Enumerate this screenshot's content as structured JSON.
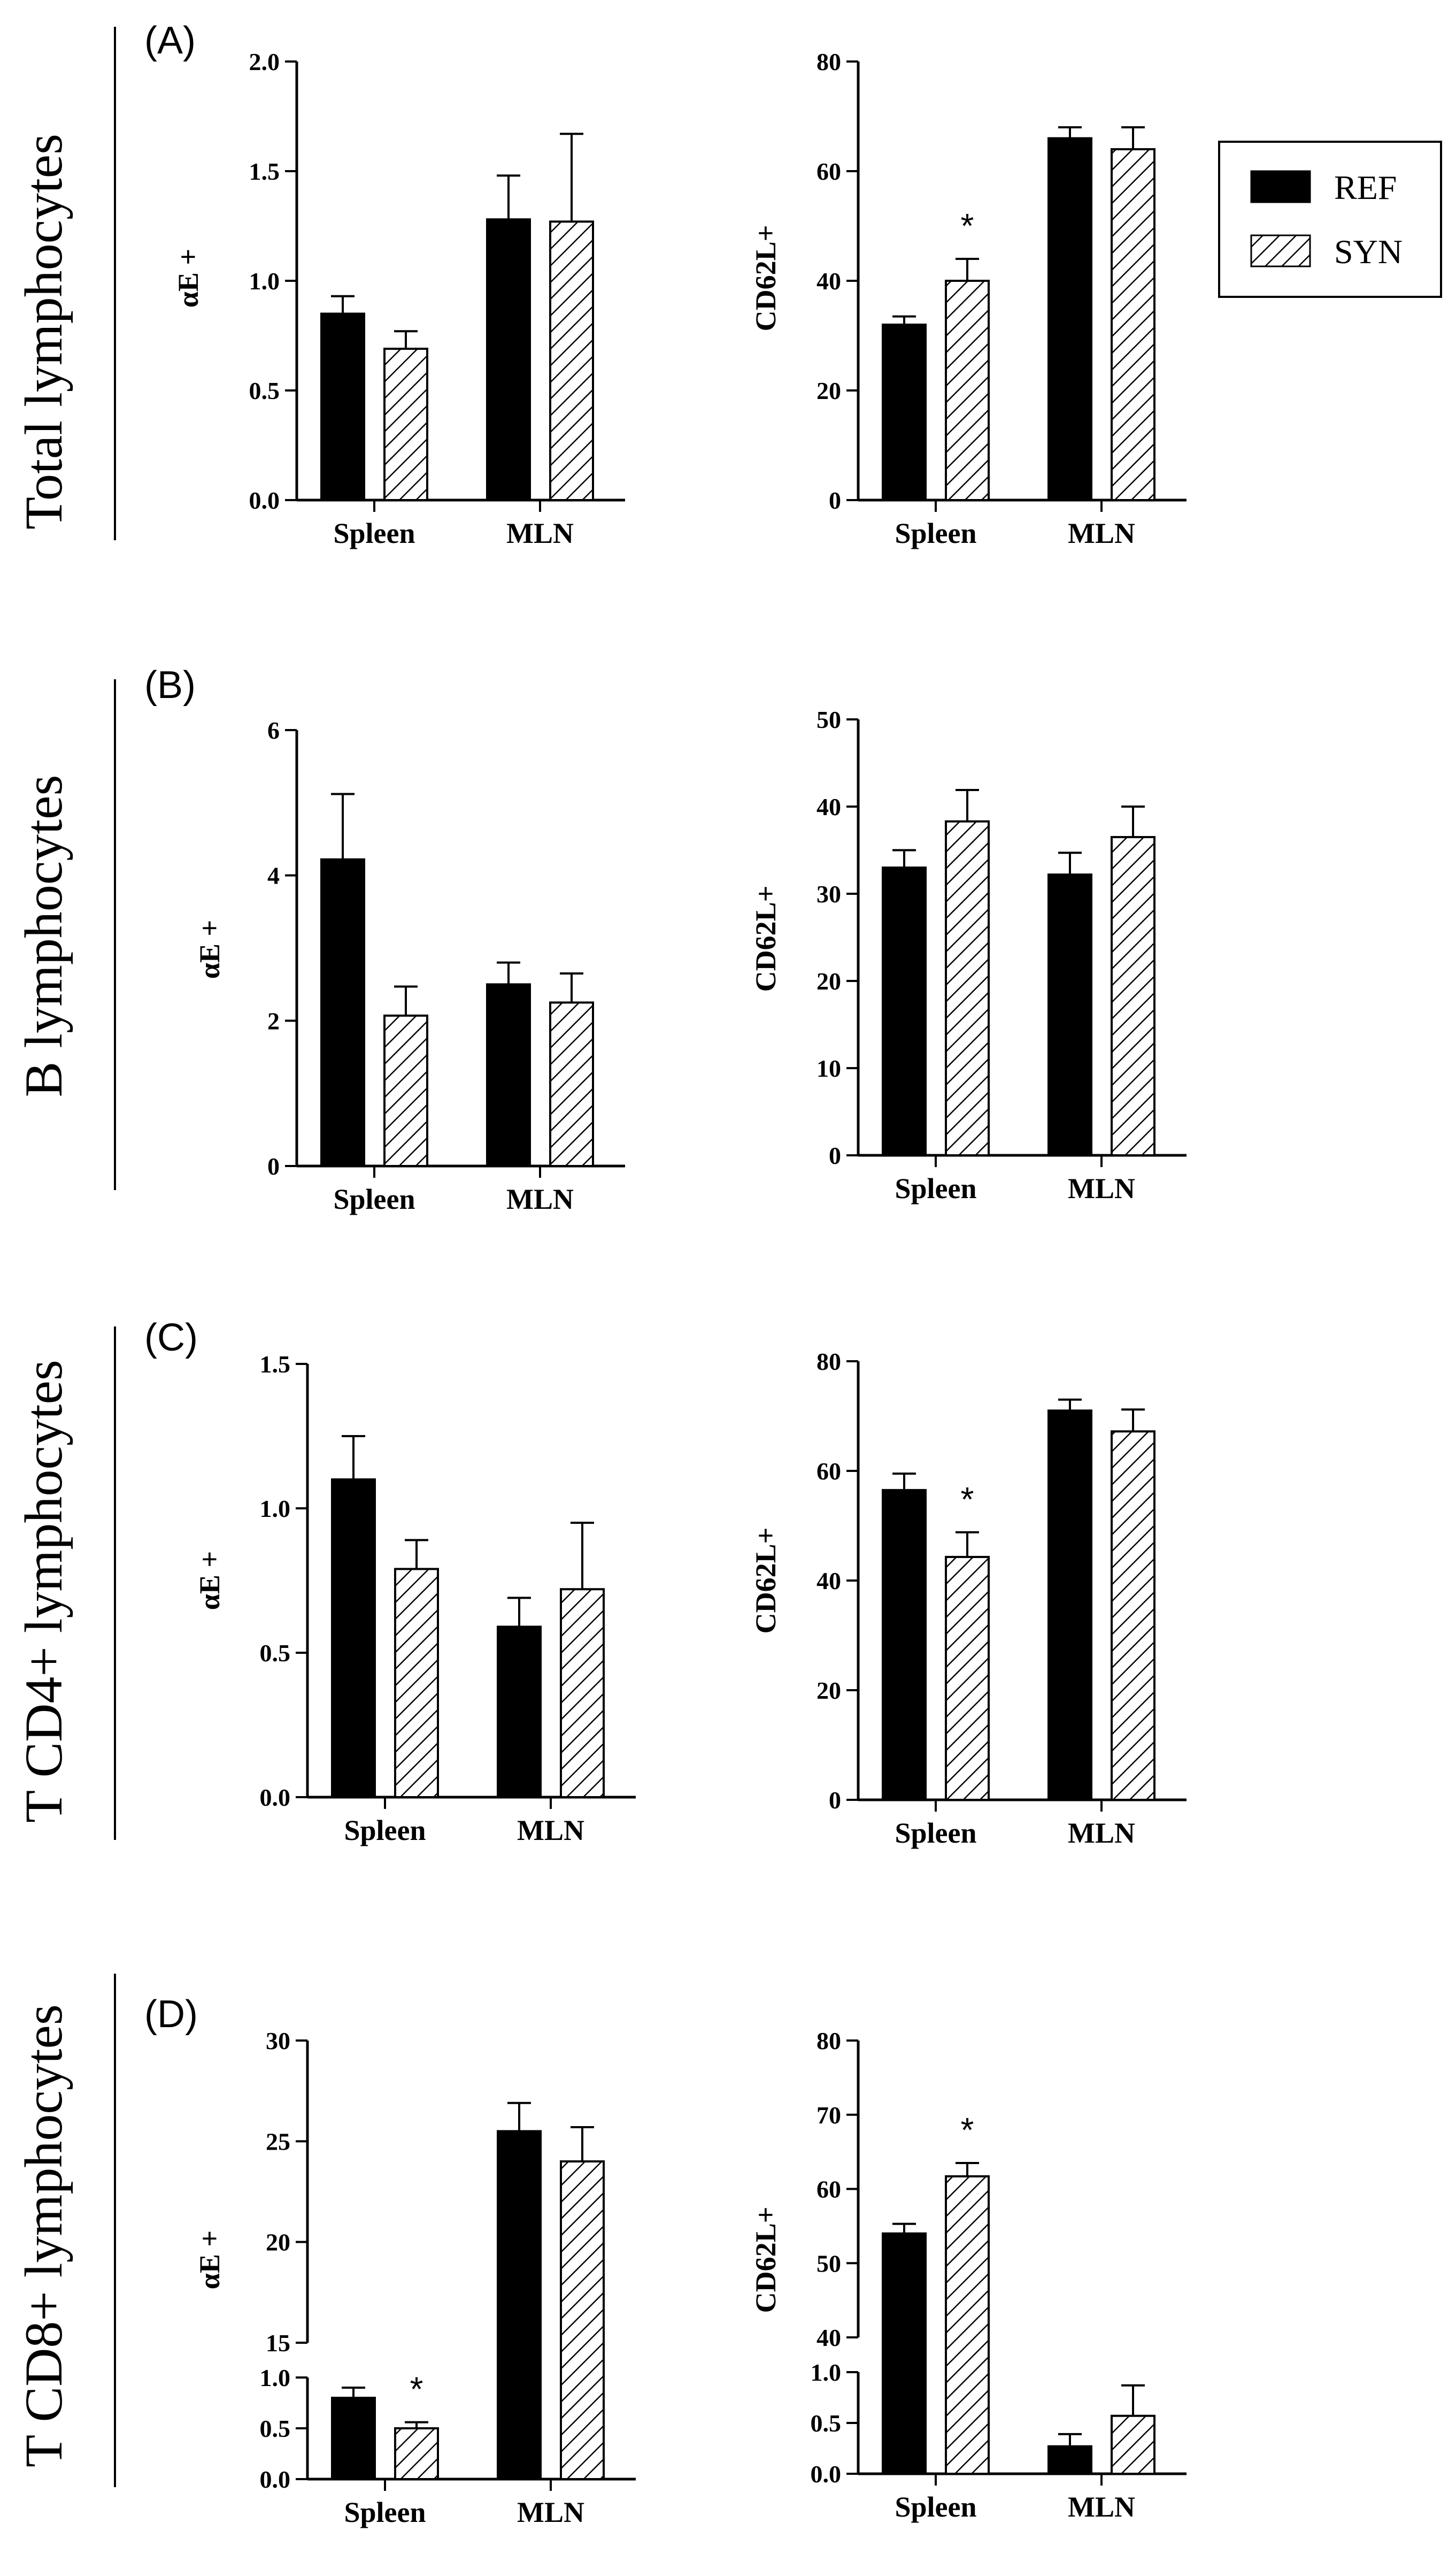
{
  "legend": {
    "items": [
      {
        "label": "REF",
        "fill": "#000000"
      },
      {
        "label": "SYN",
        "fill": "hatch"
      }
    ]
  },
  "rows": [
    {
      "panel": "(A)",
      "label": "Total lymphocytes"
    },
    {
      "panel": "(B)",
      "label": "B lymphocytes"
    },
    {
      "panel": "(C)",
      "label": "T CD4+ lymphocytes"
    },
    {
      "panel": "(D)",
      "label": "T CD8+ lymphocytes"
    }
  ],
  "chart_data": [
    {
      "type": "bar",
      "panel": "A",
      "ylabel": "αE +",
      "categories": [
        "Spleen",
        "MLN"
      ],
      "ylim": [
        0,
        2.0
      ],
      "ticks": [
        "0.0",
        "0.5",
        "1.0",
        "1.5",
        "2.0"
      ],
      "series": [
        {
          "name": "REF",
          "values": [
            0.85,
            1.28
          ],
          "errors": [
            0.08,
            0.2
          ]
        },
        {
          "name": "SYN",
          "values": [
            0.69,
            1.27
          ],
          "errors": [
            0.08,
            0.4
          ]
        }
      ],
      "significance": []
    },
    {
      "type": "bar",
      "panel": "A",
      "ylabel": "CD62L+",
      "categories": [
        "Spleen",
        "MLN"
      ],
      "ylim": [
        0,
        80
      ],
      "ticks": [
        "0",
        "20",
        "40",
        "60",
        "80"
      ],
      "series": [
        {
          "name": "REF",
          "values": [
            32,
            66
          ],
          "errors": [
            1.5,
            2
          ]
        },
        {
          "name": "SYN",
          "values": [
            40,
            64
          ],
          "errors": [
            4,
            4
          ]
        }
      ],
      "significance": [
        {
          "series": 1,
          "category": 0,
          "label": "*"
        }
      ]
    },
    {
      "type": "bar",
      "panel": "B",
      "ylabel": "αE +",
      "categories": [
        "Spleen",
        "MLN"
      ],
      "ylim": [
        0,
        6
      ],
      "ticks": [
        "0",
        "2",
        "4",
        "6"
      ],
      "series": [
        {
          "name": "REF",
          "values": [
            4.22,
            2.5
          ],
          "errors": [
            0.9,
            0.3
          ]
        },
        {
          "name": "SYN",
          "values": [
            2.07,
            2.25
          ],
          "errors": [
            0.4,
            0.4
          ]
        }
      ],
      "significance": []
    },
    {
      "type": "bar",
      "panel": "B",
      "ylabel": "CD62L+",
      "categories": [
        "Spleen",
        "MLN"
      ],
      "ylim": [
        0,
        50
      ],
      "ticks": [
        "0",
        "10",
        "20",
        "30",
        "40",
        "50"
      ],
      "series": [
        {
          "name": "REF",
          "values": [
            33,
            32.2
          ],
          "errors": [
            2,
            2.5
          ]
        },
        {
          "name": "SYN",
          "values": [
            38.3,
            36.5
          ],
          "errors": [
            3.6,
            3.5
          ]
        }
      ],
      "significance": []
    },
    {
      "type": "bar",
      "panel": "C",
      "ylabel": "αE +",
      "categories": [
        "Spleen",
        "MLN"
      ],
      "ylim": [
        0,
        1.5
      ],
      "ticks": [
        "0.0",
        "0.5",
        "1.0",
        "1.5"
      ],
      "series": [
        {
          "name": "REF",
          "values": [
            1.1,
            0.59
          ],
          "errors": [
            0.15,
            0.1
          ]
        },
        {
          "name": "SYN",
          "values": [
            0.79,
            0.72
          ],
          "errors": [
            0.1,
            0.23
          ]
        }
      ],
      "significance": []
    },
    {
      "type": "bar",
      "panel": "C",
      "ylabel": "CD62L+",
      "categories": [
        "Spleen",
        "MLN"
      ],
      "ylim": [
        0,
        80
      ],
      "ticks": [
        "0",
        "20",
        "40",
        "60",
        "80"
      ],
      "series": [
        {
          "name": "REF",
          "values": [
            56.5,
            71
          ],
          "errors": [
            3,
            2
          ]
        },
        {
          "name": "SYN",
          "values": [
            44.3,
            67.2
          ],
          "errors": [
            4.5,
            4
          ]
        }
      ],
      "significance": [
        {
          "series": 1,
          "category": 0,
          "label": "*"
        }
      ]
    },
    {
      "type": "bar",
      "panel": "D",
      "ylabel": "αE +",
      "categories": [
        "Spleen",
        "MLN"
      ],
      "broken_axis": {
        "lower": [
          0,
          1.0
        ],
        "upper": [
          15,
          30
        ]
      },
      "ticks_lower": [
        "0.0",
        "0.5",
        "1.0"
      ],
      "ticks_upper": [
        "15",
        "20",
        "25",
        "30"
      ],
      "series": [
        {
          "name": "REF",
          "values": [
            0.8,
            25.5
          ],
          "errors": [
            0.1,
            1.4
          ]
        },
        {
          "name": "SYN",
          "values": [
            0.5,
            24
          ],
          "errors": [
            0.06,
            1.7
          ]
        }
      ],
      "significance": [
        {
          "series": 1,
          "category": 0,
          "label": "*"
        }
      ]
    },
    {
      "type": "bar",
      "panel": "D",
      "ylabel": "CD62L+",
      "categories": [
        "Spleen",
        "MLN"
      ],
      "broken_axis": {
        "lower": [
          0,
          1.0
        ],
        "upper": [
          40,
          80
        ]
      },
      "ticks_lower": [
        "0.0",
        "0.5",
        "1.0"
      ],
      "ticks_upper": [
        "40",
        "50",
        "60",
        "70",
        "80"
      ],
      "series": [
        {
          "name": "REF",
          "values": [
            54,
            0.27
          ],
          "errors": [
            1.3,
            0.12
          ]
        },
        {
          "name": "SYN",
          "values": [
            61.7,
            0.57
          ],
          "errors": [
            1.8,
            0.3
          ]
        }
      ],
      "significance": [
        {
          "series": 1,
          "category": 0,
          "label": "*"
        }
      ]
    }
  ]
}
